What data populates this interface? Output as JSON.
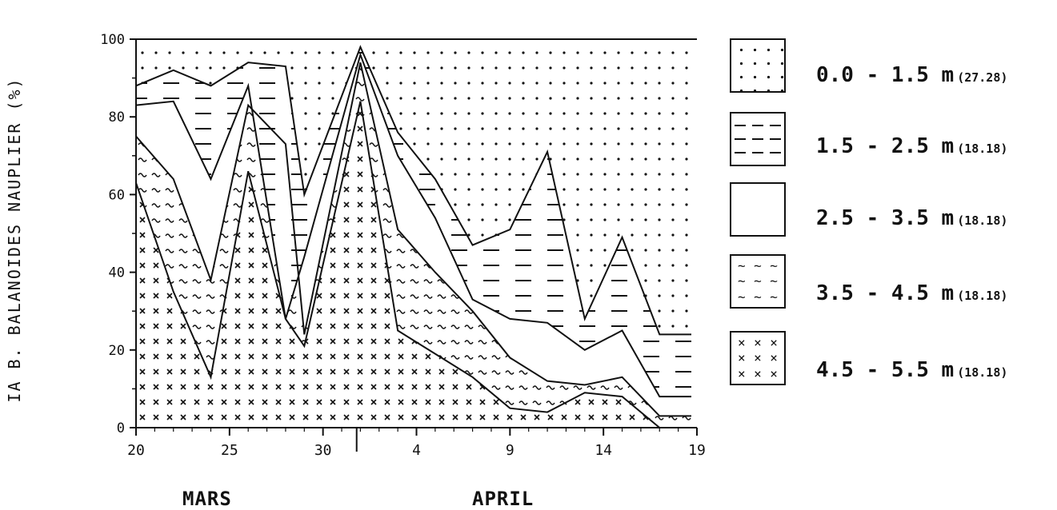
{
  "chart_data": {
    "type": "area",
    "ylabel": "IA B. BALANOIDES NAUPLIER (%)",
    "ylim": [
      0,
      100
    ],
    "yticks": [
      0,
      20,
      40,
      60,
      80,
      100
    ],
    "x": [
      0,
      2,
      4,
      6,
      8,
      9,
      12,
      14,
      16,
      18,
      20,
      22,
      24,
      26,
      28,
      29.7
    ],
    "xticks": [
      {
        "x": 0,
        "label": "20"
      },
      {
        "x": 5,
        "label": "25"
      },
      {
        "x": 10,
        "label": "30"
      },
      {
        "x": 15,
        "label": "4"
      },
      {
        "x": 20,
        "label": "9"
      },
      {
        "x": 25,
        "label": "14"
      },
      {
        "x": 30,
        "label": "19"
      }
    ],
    "month_labels": [
      "MARS",
      "APRIL"
    ],
    "boundaries": [
      {
        "name": "4.5 - 5.5 m",
        "values": [
          63,
          35,
          13,
          66,
          28,
          21,
          84,
          25,
          19,
          13,
          5,
          4,
          9,
          8,
          0,
          0
        ]
      },
      {
        "name": "3.5 - 4.5 m",
        "values": [
          75,
          64,
          38,
          83,
          73,
          24,
          94,
          51,
          40,
          30,
          18,
          12,
          11,
          13,
          3,
          3
        ]
      },
      {
        "name": "2.5 - 3.5 m",
        "values": [
          83,
          84,
          64,
          88,
          28,
          44,
          96,
          70,
          54,
          33,
          28,
          27,
          20,
          25,
          8,
          8
        ]
      },
      {
        "name": "1.5 - 2.5 m",
        "values": [
          88,
          92,
          88,
          94,
          93,
          60,
          98,
          76,
          64,
          47,
          51,
          71,
          28,
          49,
          24,
          24
        ]
      },
      {
        "name": "0.0 - 1.5 m",
        "values": [
          100,
          100,
          100,
          100,
          100,
          100,
          100,
          100,
          100,
          100,
          100,
          100,
          100,
          100,
          100,
          100
        ]
      }
    ],
    "legend": [
      {
        "label": "0.0 - 1.5 m",
        "value": "(27.28)",
        "pattern": "dots"
      },
      {
        "label": "1.5 - 2.5 m",
        "value": "(18.18)",
        "pattern": "dashes"
      },
      {
        "label": "2.5 - 3.5 m",
        "value": "(18.18)",
        "pattern": "blank"
      },
      {
        "label": "3.5 - 4.5 m",
        "value": "(18.18)",
        "pattern": "tilde"
      },
      {
        "label": "4.5 - 5.5 m",
        "value": "(18.18)",
        "pattern": "cross"
      }
    ],
    "legend_placement": "right",
    "grid": false
  }
}
